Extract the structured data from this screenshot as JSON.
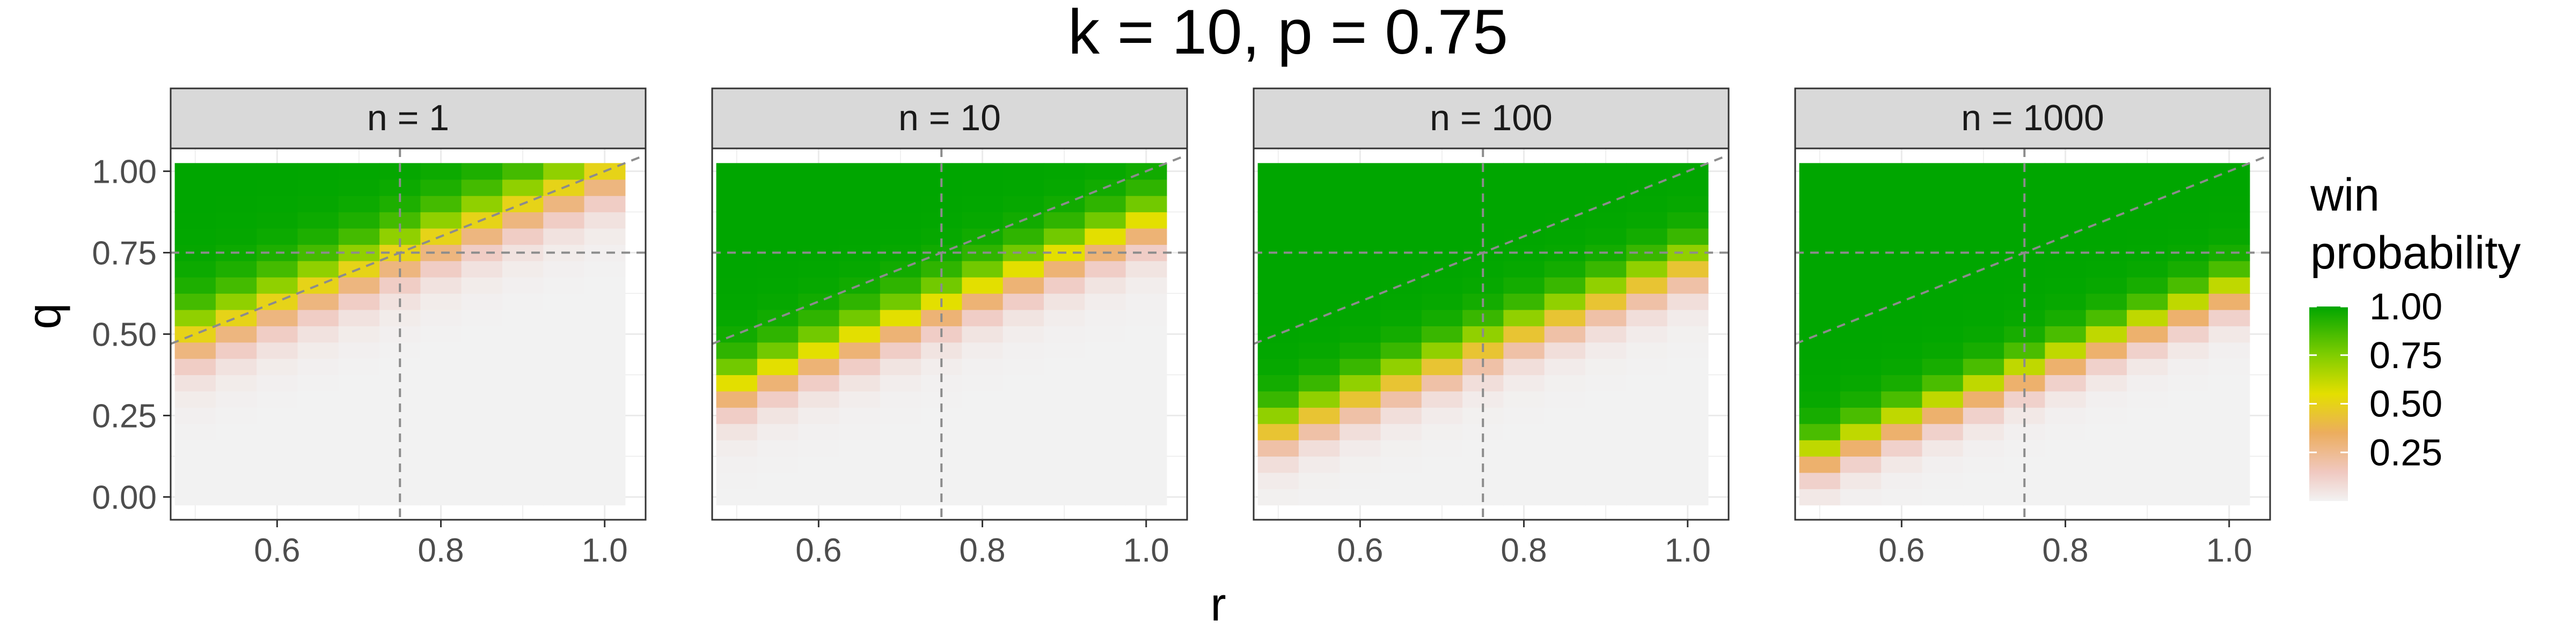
{
  "chart_data": {
    "type": "heatmap",
    "title": "k = 10, p = 0.75",
    "xlabel": "r",
    "ylabel": "q",
    "x_ticks": [
      "0.6",
      "0.8",
      "1.0"
    ],
    "y_ticks": [
      "0.00",
      "0.25",
      "0.50",
      "0.75",
      "1.00"
    ],
    "r_values": [
      0.5,
      0.55,
      0.6,
      0.65,
      0.7,
      0.75,
      0.8,
      0.85,
      0.9,
      0.95,
      1.0
    ],
    "q_values": [
      0.0,
      0.05,
      0.1,
      0.15,
      0.2,
      0.25,
      0.3,
      0.35,
      0.4,
      0.45,
      0.5,
      0.55,
      0.6,
      0.65,
      0.7,
      0.75,
      0.8,
      0.85,
      0.9,
      0.95,
      1.0
    ],
    "xlim": [
      0.47,
      1.05
    ],
    "ylim": [
      -0.07,
      1.07
    ],
    "reference_lines": {
      "vertical_r": 0.75,
      "horizontal_q": 0.75,
      "diagonal": "q = r"
    },
    "legend": {
      "title_lines": [
        "win",
        "probability"
      ],
      "ticks": [
        "1.00",
        "0.75",
        "0.50",
        "0.25"
      ],
      "placement": "right",
      "colors": [
        "#f2f2f2",
        "#f0c8c0",
        "#ecad5e",
        "#e4df00",
        "#80cd00",
        "#00a600"
      ]
    },
    "panels": [
      {
        "label": "n = 1",
        "threshold_shift": 0.0,
        "steepness": 8.5
      },
      {
        "label": "n = 10",
        "threshold_shift": -0.16,
        "steepness": 9.5
      },
      {
        "label": "n = 100",
        "threshold_shift": -0.29,
        "steepness": 10.5
      },
      {
        "label": "n = 1000",
        "threshold_shift": -0.37,
        "steepness": 11.5
      }
    ]
  }
}
